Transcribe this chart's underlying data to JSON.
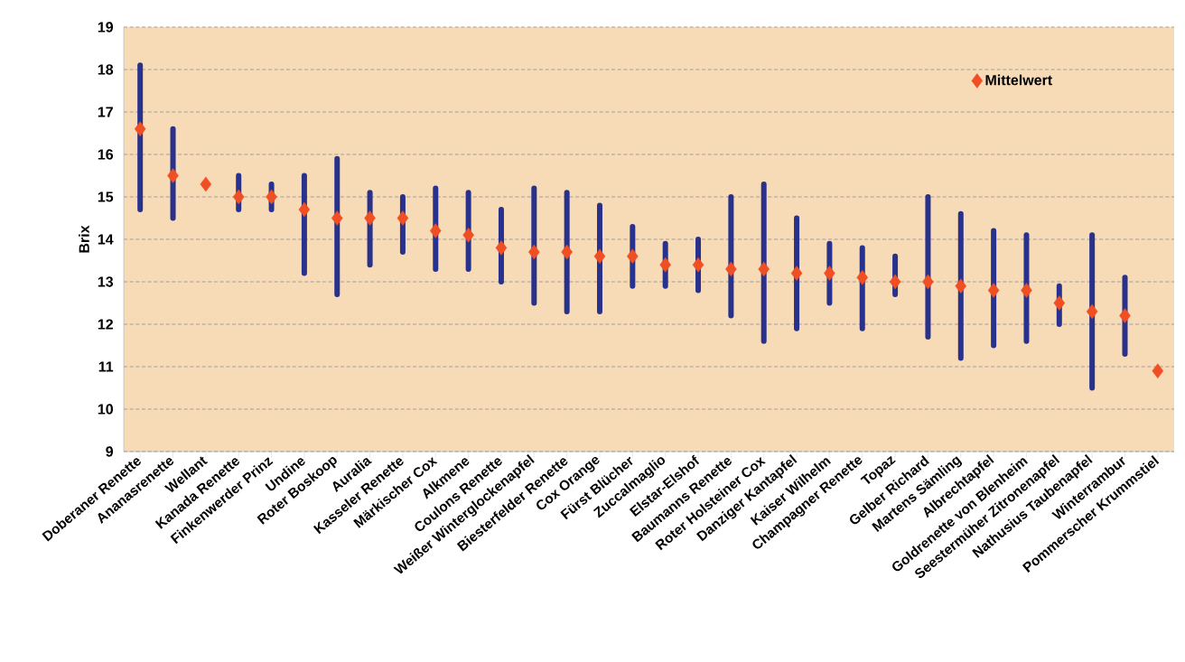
{
  "chart_data": {
    "type": "scatter",
    "ylabel": "Brix",
    "categories": [
      "Doberaner Renette",
      "Ananasrenette",
      "Wellant",
      "Kanada Renette",
      "Finkenwerder Prinz",
      "Undine",
      "Roter Boskoop",
      "Auralia",
      "Kasseler Renette",
      "Märkischer Cox",
      "Alkmene",
      "Coulons Renette",
      "Weißer Winterglockenapfel",
      "Biesterfelder Renette",
      "Cox Orange",
      "Fürst Blücher",
      "Zuccalmaglio",
      "Elstar-Elshof",
      "Baumanns Renette",
      "Roter Holsteiner Cox",
      "Danziger Kantapfel",
      "Kaiser Wilhelm",
      "Champagner Renette",
      "Topaz",
      "Gelber Richard",
      "Martens Sämling",
      "Albrechtapfel",
      "Goldrenette von Blenheim",
      "Seestermüher Zitronenapfel",
      "Nathusius Taubenapfel",
      "Winterrambur",
      "Pommerscher Krummstiel"
    ],
    "series": [
      {
        "name": "Mittelwert",
        "color": "#f04e23",
        "values": [
          16.6,
          15.5,
          15.3,
          15.0,
          15.0,
          14.7,
          14.5,
          14.5,
          14.5,
          14.2,
          14.1,
          13.8,
          13.7,
          13.7,
          13.6,
          13.6,
          13.4,
          13.4,
          13.3,
          13.3,
          13.2,
          13.2,
          13.1,
          13.0,
          13.0,
          12.9,
          12.8,
          12.8,
          12.5,
          12.3,
          12.2,
          10.9
        ],
        "errors": [
          [
            14.7,
            18.1
          ],
          [
            14.5,
            16.6
          ],
          null,
          [
            14.7,
            15.5
          ],
          [
            14.7,
            15.3
          ],
          [
            13.2,
            15.5
          ],
          [
            12.7,
            15.9
          ],
          [
            13.4,
            15.1
          ],
          [
            13.7,
            15.0
          ],
          [
            13.3,
            15.2
          ],
          [
            13.3,
            15.1
          ],
          [
            13.0,
            14.7
          ],
          [
            12.5,
            15.2
          ],
          [
            12.3,
            15.1
          ],
          [
            12.3,
            14.8
          ],
          [
            12.9,
            14.3
          ],
          [
            12.9,
            13.9
          ],
          [
            12.8,
            14.0
          ],
          [
            12.2,
            15.0
          ],
          [
            11.6,
            15.3
          ],
          [
            11.9,
            14.5
          ],
          [
            12.5,
            13.9
          ],
          [
            11.9,
            13.8
          ],
          [
            12.7,
            13.6
          ],
          [
            11.7,
            15.0
          ],
          [
            11.2,
            14.6
          ],
          [
            11.5,
            14.2
          ],
          [
            11.6,
            14.1
          ],
          [
            12.0,
            12.9
          ],
          [
            10.5,
            14.1
          ],
          [
            11.3,
            13.1
          ],
          null
        ]
      }
    ],
    "ylim": [
      9,
      19
    ],
    "yticks": [
      9,
      10,
      11,
      12,
      13,
      14,
      15,
      16,
      17,
      18,
      19
    ],
    "grid": "y",
    "legend": "top right",
    "marker": "diamond"
  }
}
